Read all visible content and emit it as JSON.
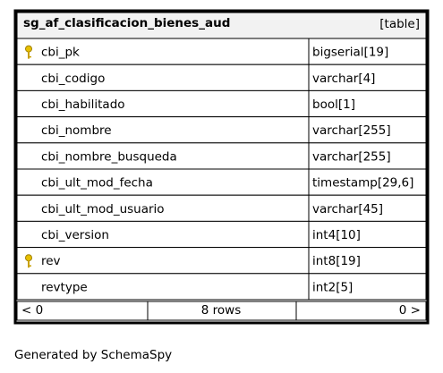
{
  "table": {
    "name": "sg_af_clasificacion_bienes_aud",
    "kind": "[table]",
    "columns": [
      {
        "name": "cbi_pk",
        "type": "bigserial[19]",
        "key": true
      },
      {
        "name": "cbi_codigo",
        "type": "varchar[4]",
        "key": false
      },
      {
        "name": "cbi_habilitado",
        "type": "bool[1]",
        "key": false
      },
      {
        "name": "cbi_nombre",
        "type": "varchar[255]",
        "key": false
      },
      {
        "name": "cbi_nombre_busqueda",
        "type": "varchar[255]",
        "key": false
      },
      {
        "name": "cbi_ult_mod_fecha",
        "type": "timestamp[29,6]",
        "key": false
      },
      {
        "name": "cbi_ult_mod_usuario",
        "type": "varchar[45]",
        "key": false
      },
      {
        "name": "cbi_version",
        "type": "int4[10]",
        "key": false
      },
      {
        "name": "rev",
        "type": "int8[19]",
        "key": true
      },
      {
        "name": "revtype",
        "type": "int2[5]",
        "key": false
      }
    ],
    "footer": {
      "left": "< 0",
      "middle": "8 rows",
      "right": "0 >"
    }
  },
  "credit": "Generated by SchemaSpy"
}
